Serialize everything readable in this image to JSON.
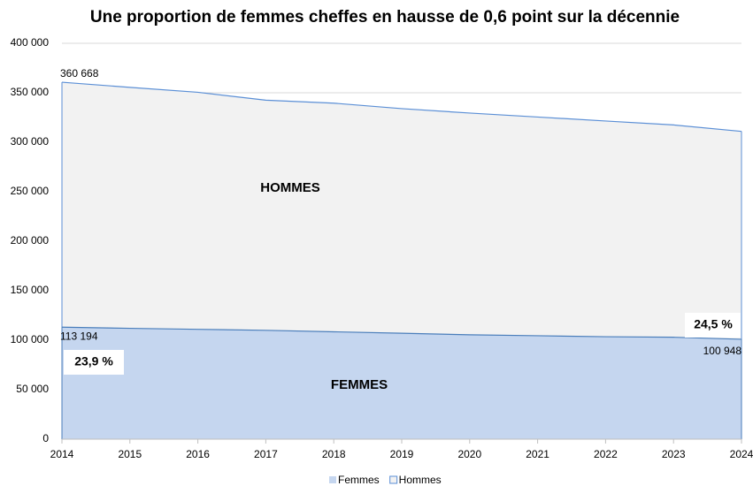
{
  "chart_data": {
    "type": "area",
    "title": "Une proportion de femmes cheffes en hausse de 0,6 point sur la décennie",
    "x": [
      2014,
      2015,
      2016,
      2017,
      2018,
      2019,
      2020,
      2021,
      2022,
      2023,
      2024
    ],
    "xlim": [
      2014,
      2024
    ],
    "xticks": [
      2014,
      2015,
      2016,
      2017,
      2018,
      2019,
      2020,
      2021,
      2022,
      2023,
      2024
    ],
    "ylim": [
      0,
      400000
    ],
    "yticks": [
      0,
      {
        "value": 50000,
        "label": "50 000"
      },
      {
        "value": 100000,
        "label": "100 000"
      },
      {
        "value": 150000,
        "label": "150 000"
      },
      {
        "value": 200000,
        "label": "200 000"
      },
      {
        "value": 250000,
        "label": "250 000"
      },
      {
        "value": 300000,
        "label": "300 000"
      },
      {
        "value": 350000,
        "label": "350 000"
      },
      {
        "value": 400000,
        "label": "400 000"
      }
    ],
    "grid": true,
    "legend": "bottom",
    "series": [
      {
        "name": "Hommes",
        "color": "#f2f2f2",
        "line_color": "#5b8fd6",
        "values": [
          360668,
          355500,
          350500,
          342500,
          339500,
          334000,
          329500,
          325500,
          321500,
          317500,
          311000
        ],
        "value_labels": [
          "360 668",
          null,
          null,
          null,
          null,
          null,
          null,
          null,
          null,
          null,
          null
        ]
      },
      {
        "name": "Femmes",
        "color": "#c5d6ef",
        "line_color": "#4a7ebb",
        "values": [
          113194,
          112000,
          111000,
          110000,
          108500,
          107000,
          105500,
          104500,
          103500,
          103000,
          100948
        ],
        "value_labels": [
          "113 194",
          null,
          null,
          null,
          null,
          null,
          null,
          null,
          null,
          null,
          "100 948"
        ]
      }
    ],
    "annotations": [
      "HOMMES",
      "FEMMES",
      "23,9 %",
      "24,5 %"
    ]
  }
}
